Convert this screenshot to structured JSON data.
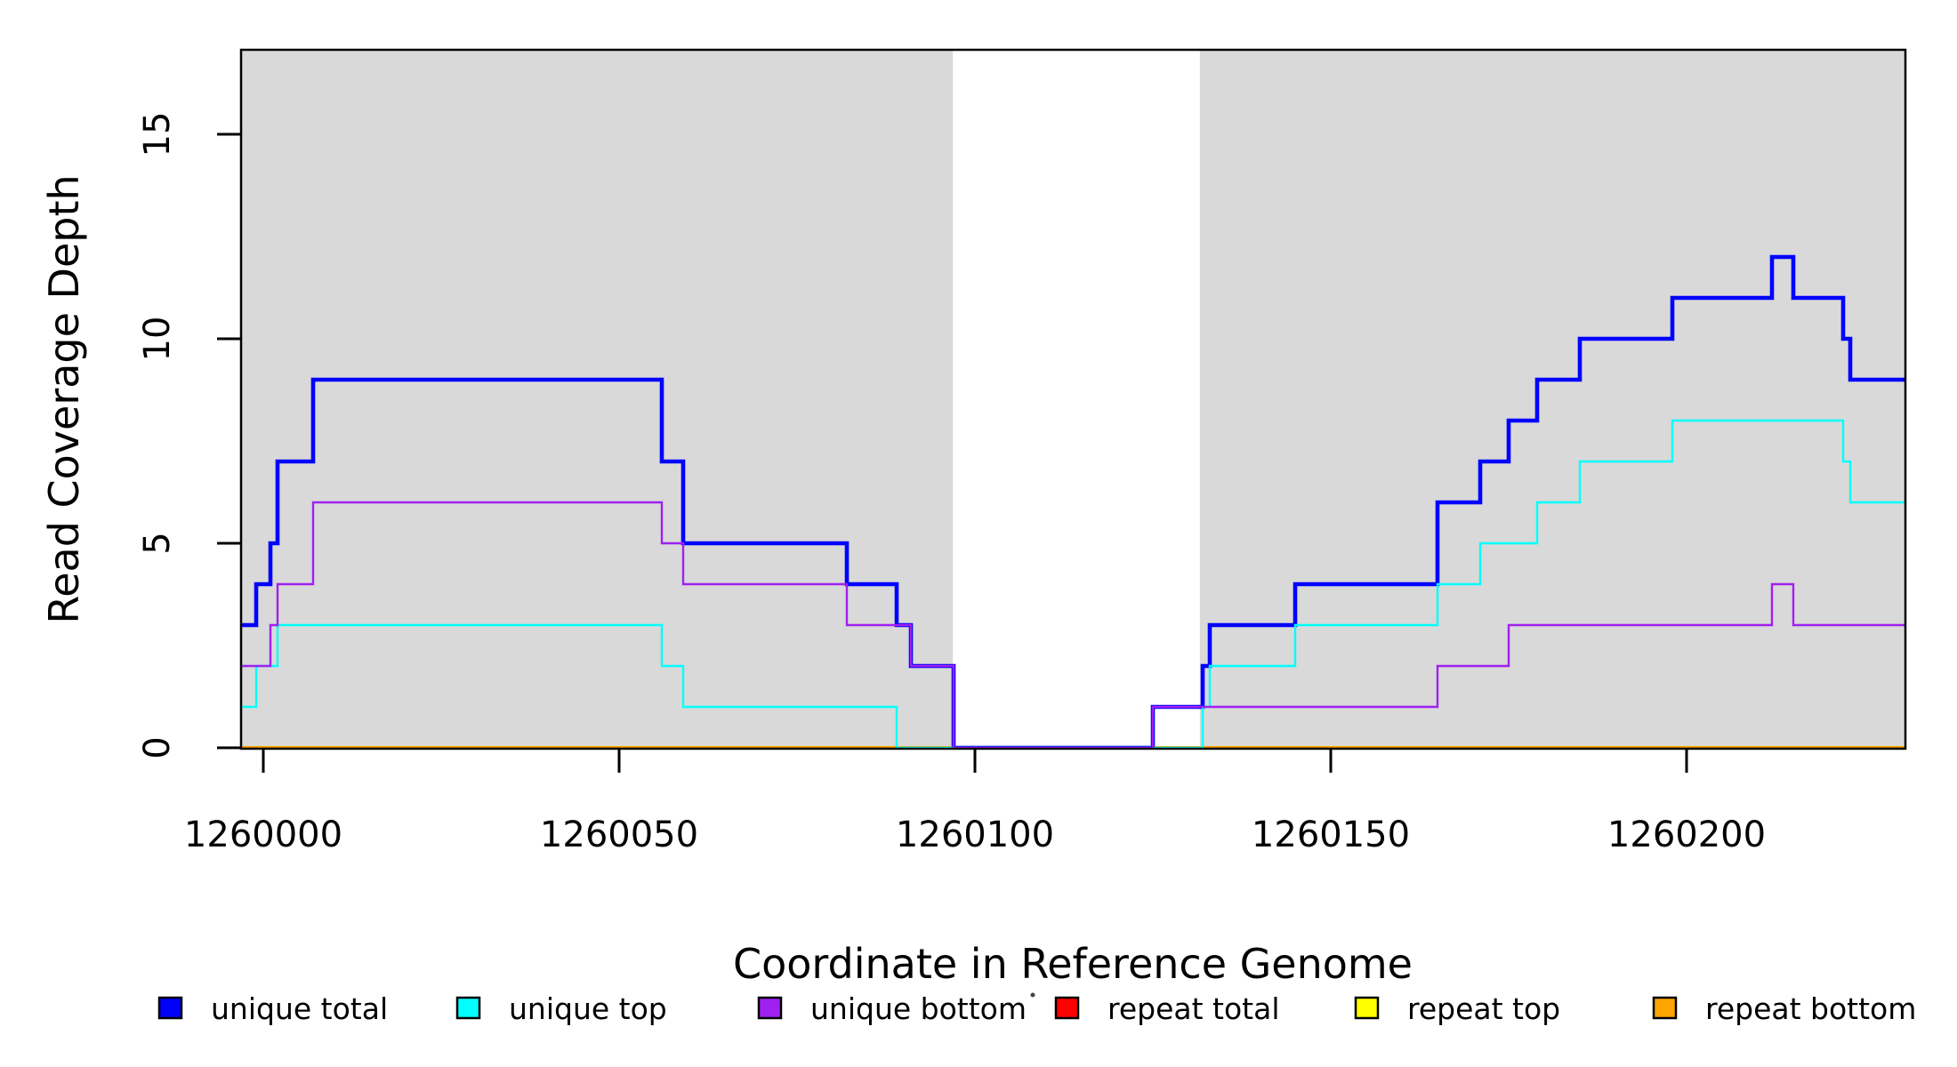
{
  "figure": {
    "xlabel": "Coordinate in Reference Genome",
    "ylabel": "Read Coverage Depth"
  },
  "chart_data": {
    "type": "line",
    "subtype": "step-coverage",
    "title": "",
    "xlabel": "Coordinate in Reference Genome",
    "ylabel": "Read Coverage Depth",
    "x_ticks": [
      1260000,
      1260050,
      1260100,
      1260150,
      1260200
    ],
    "y_ticks": [
      0,
      5,
      10,
      15
    ],
    "xlim": [
      1259997,
      1260231
    ],
    "ylim": [
      0,
      17.1
    ],
    "grid": false,
    "legend_position": "bottom",
    "plot_background": "#ffffff",
    "shaded_regions": {
      "color": "#d9d9d9",
      "note": "aligned-block regions; white band is an alignment gap",
      "ranges_genome": [
        [
          1259997,
          1260096.9
        ],
        [
          1260131.6,
          1260231
        ]
      ]
    },
    "series": [
      {
        "name": "repeat-total",
        "label": "repeat total",
        "color": "#ff0000",
        "width": 4,
        "points": [
          [
            1259997,
            0
          ],
          [
            1260231,
            0
          ]
        ]
      },
      {
        "name": "repeat-top",
        "label": "repeat top",
        "color": "#ffff00",
        "width": 4,
        "points": [
          [
            1259997,
            0
          ],
          [
            1260231,
            0
          ]
        ]
      },
      {
        "name": "repeat-bottom",
        "label": "repeat bottom",
        "color": "#ffa500",
        "width": 4,
        "points": [
          [
            1259997,
            0
          ],
          [
            1260231,
            0
          ]
        ]
      },
      {
        "name": "unique-total",
        "label": "unique total",
        "color": "#0000ff",
        "width": 4.6,
        "points": [
          [
            1259997,
            3
          ],
          [
            1259999,
            4
          ],
          [
            1260001,
            5
          ],
          [
            1260002,
            7
          ],
          [
            1260007,
            9
          ],
          [
            1260056,
            7
          ],
          [
            1260059,
            5
          ],
          [
            1260082,
            4
          ],
          [
            1260089,
            3
          ],
          [
            1260091,
            2
          ],
          [
            1260097,
            0
          ],
          [
            1260125,
            1
          ],
          [
            1260132,
            2
          ],
          [
            1260133,
            3
          ],
          [
            1260145,
            4
          ],
          [
            1260165,
            6
          ],
          [
            1260171,
            7
          ],
          [
            1260175,
            8
          ],
          [
            1260179,
            9
          ],
          [
            1260185,
            10
          ],
          [
            1260198,
            11
          ],
          [
            1260212,
            12
          ],
          [
            1260215,
            11
          ],
          [
            1260222,
            10
          ],
          [
            1260223,
            9
          ],
          [
            1260231,
            9
          ]
        ]
      },
      {
        "name": "unique-top",
        "label": "unique top",
        "color": "#00ffff",
        "width": 2.4,
        "points": [
          [
            1259997,
            1
          ],
          [
            1259999,
            2
          ],
          [
            1260002,
            3
          ],
          [
            1260056,
            2
          ],
          [
            1260059,
            1
          ],
          [
            1260089,
            0
          ],
          [
            1260132,
            1
          ],
          [
            1260133,
            2
          ],
          [
            1260145,
            3
          ],
          [
            1260165,
            4
          ],
          [
            1260171,
            5
          ],
          [
            1260179,
            6
          ],
          [
            1260185,
            7
          ],
          [
            1260198,
            8
          ],
          [
            1260222,
            7
          ],
          [
            1260223,
            6
          ],
          [
            1260231,
            6
          ]
        ]
      },
      {
        "name": "unique-bottom",
        "label": "unique bottom",
        "color": "#a020f0",
        "width": 2.4,
        "points": [
          [
            1259997,
            2
          ],
          [
            1260001,
            3
          ],
          [
            1260002,
            4
          ],
          [
            1260007,
            6
          ],
          [
            1260056,
            5
          ],
          [
            1260059,
            4
          ],
          [
            1260082,
            3
          ],
          [
            1260091,
            2
          ],
          [
            1260097,
            0
          ],
          [
            1260125,
            1
          ],
          [
            1260165,
            2
          ],
          [
            1260175,
            3
          ],
          [
            1260212,
            4
          ],
          [
            1260215,
            3
          ],
          [
            1260231,
            3
          ]
        ]
      }
    ],
    "legend": [
      {
        "label": "unique total",
        "color": "#0000ff"
      },
      {
        "label": "unique top",
        "color": "#00ffff"
      },
      {
        "label": "unique bottom",
        "color": "#a020f0"
      },
      {
        "label": "repeat total",
        "color": "#ff0000"
      },
      {
        "label": "repeat top",
        "color": "#ffff00"
      },
      {
        "label": "repeat bottom",
        "color": "#ffa500"
      }
    ]
  }
}
